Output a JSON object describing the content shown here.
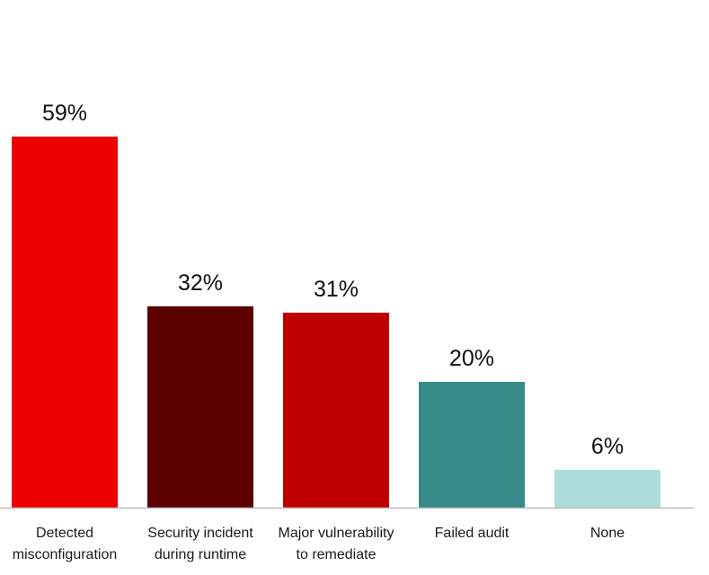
{
  "chart_data": {
    "type": "bar",
    "categories": [
      [
        "Detected",
        "misconfiguration"
      ],
      [
        "Security incident",
        "during runtime"
      ],
      [
        "Major vulnerability",
        "to remediate"
      ],
      [
        "Failed audit"
      ],
      [
        "None"
      ]
    ],
    "values": [
      59,
      32,
      31,
      20,
      6
    ],
    "value_labels": [
      "59%",
      "32%",
      "31%",
      "20%",
      "6%"
    ],
    "colors": [
      "#ee0000",
      "#5c0000",
      "#be0000",
      "#37898a",
      "#aedcdc"
    ],
    "baseline_color": "#bdbdbd",
    "ylim": [
      0,
      59
    ],
    "grid": false,
    "legend": "none"
  }
}
